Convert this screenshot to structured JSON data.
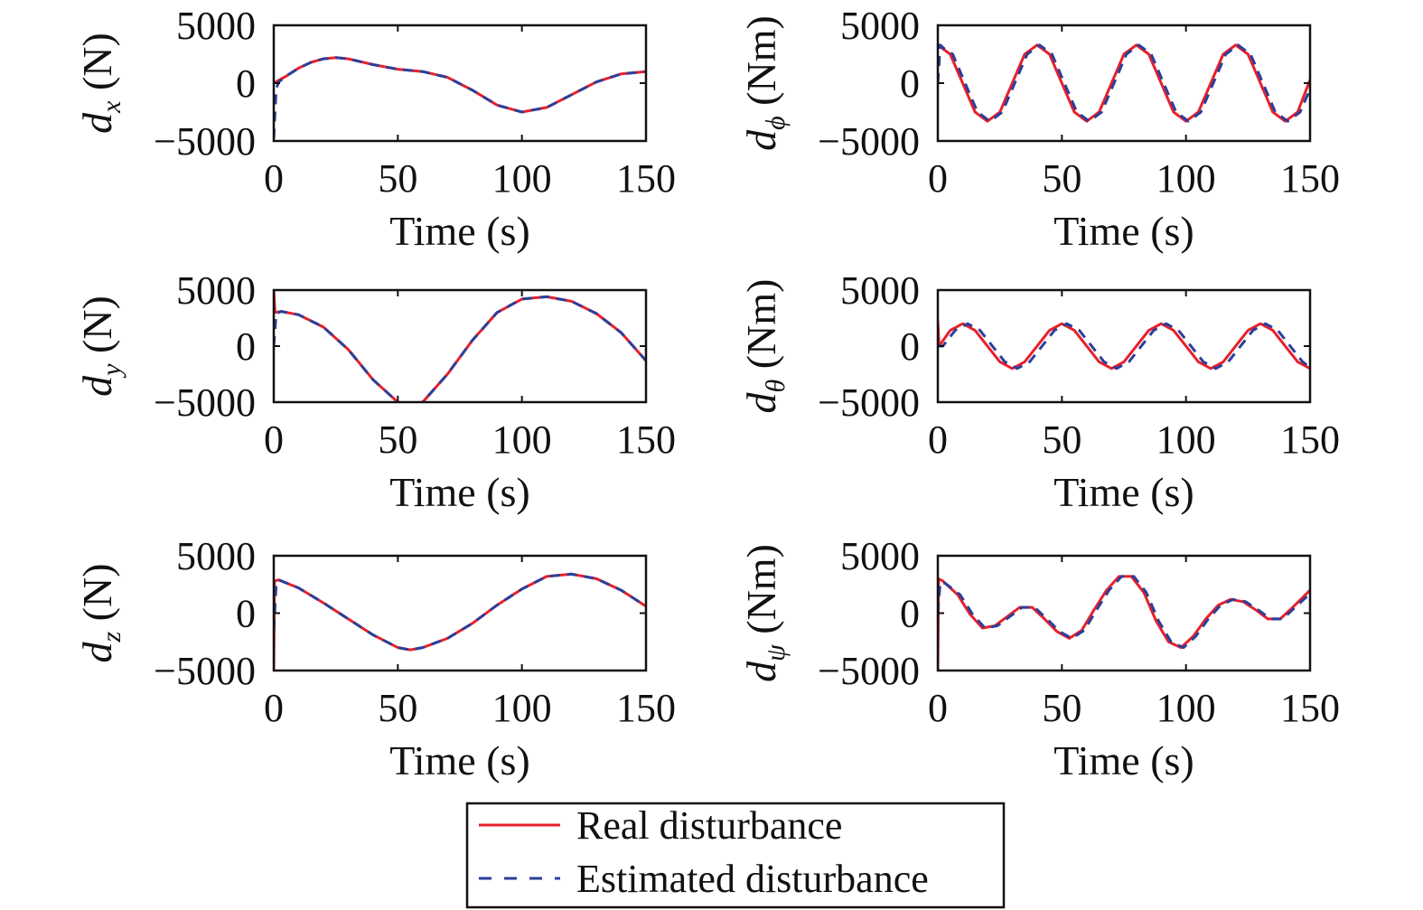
{
  "legend": {
    "real_label": "Real disturbance",
    "estimated_label": "Estimated disturbance",
    "real_color": "#e8202a",
    "estimated_color": "#2b3f9a",
    "placement": "bottom-center"
  },
  "chart_data": [
    {
      "type": "line",
      "xlabel": "Time (s)",
      "ylabel_symbol": "d",
      "ylabel_sub": "x",
      "ylabel_unit": " (N)",
      "xlim": [
        0,
        150
      ],
      "ylim": [
        -5000,
        5000
      ],
      "xticks": [
        0,
        50,
        100,
        150
      ],
      "yticks": [
        -5000,
        0,
        5000
      ],
      "xtick_labels": [
        "0",
        "50",
        "100",
        "150"
      ],
      "ytick_labels": [
        "−5000",
        "0",
        "5000"
      ],
      "series": [
        {
          "role": "real",
          "x": [
            0,
            5,
            10,
            15,
            20,
            25,
            30,
            40,
            50,
            60,
            70,
            80,
            90,
            100,
            110,
            120,
            130,
            140,
            150
          ],
          "y": [
            0,
            600,
            1300,
            1800,
            2100,
            2200,
            2100,
            1600,
            1200,
            1000,
            500,
            -600,
            -1900,
            -2500,
            -2100,
            -1000,
            100,
            800,
            1000
          ]
        },
        {
          "role": "estimated",
          "x": [
            0,
            0.5,
            1,
            2,
            5,
            10,
            15,
            20,
            25,
            30,
            40,
            50,
            60,
            70,
            80,
            90,
            100,
            110,
            120,
            130,
            140,
            150
          ],
          "y": [
            -4800,
            -2500,
            -500,
            100,
            600,
            1300,
            1800,
            2100,
            2200,
            2100,
            1600,
            1200,
            1000,
            500,
            -600,
            -1900,
            -2500,
            -2100,
            -1000,
            100,
            800,
            1000
          ]
        }
      ]
    },
    {
      "type": "line",
      "xlabel": "Time (s)",
      "ylabel_symbol": "d",
      "ylabel_sub": "ϕ",
      "ylabel_unit": " (Nm)",
      "xlim": [
        0,
        150
      ],
      "ylim": [
        -5000,
        5000
      ],
      "xticks": [
        0,
        50,
        100,
        150
      ],
      "yticks": [
        -5000,
        0,
        5000
      ],
      "xtick_labels": [
        "0",
        "50",
        "100",
        "150"
      ],
      "ytick_labels": [
        "−5000",
        "0",
        "5000"
      ],
      "series": [
        {
          "role": "real",
          "x": [
            0,
            5,
            10,
            15,
            20,
            25,
            30,
            35,
            40,
            45,
            50,
            55,
            60,
            65,
            70,
            75,
            80,
            85,
            90,
            95,
            100,
            105,
            110,
            115,
            120,
            125,
            130,
            135,
            140,
            145,
            150
          ],
          "y": [
            3300,
            2500,
            0,
            -2500,
            -3300,
            -2500,
            0,
            2500,
            3300,
            2500,
            0,
            -2500,
            -3300,
            -2500,
            0,
            2500,
            3300,
            2500,
            0,
            -2500,
            -3300,
            -2500,
            0,
            2500,
            3300,
            2500,
            0,
            -2500,
            -3300,
            -2500,
            300
          ]
        },
        {
          "role": "estimated",
          "x": [
            0,
            1,
            3,
            6,
            11,
            16,
            21,
            26,
            31,
            36,
            41,
            46,
            51,
            56,
            61,
            66,
            71,
            76,
            81,
            86,
            91,
            96,
            101,
            106,
            111,
            116,
            121,
            126,
            131,
            136,
            141,
            146,
            150
          ],
          "y": [
            0,
            3300,
            2900,
            2500,
            0,
            -2500,
            -3300,
            -2500,
            0,
            2500,
            3300,
            2500,
            0,
            -2500,
            -3300,
            -2500,
            0,
            2500,
            3300,
            2500,
            0,
            -2500,
            -3300,
            -2500,
            0,
            2500,
            3300,
            2500,
            0,
            -2500,
            -3300,
            -2500,
            -500
          ]
        }
      ]
    },
    {
      "type": "line",
      "xlabel": "Time (s)",
      "ylabel_symbol": "d",
      "ylabel_sub": "y",
      "ylabel_unit": " (N)",
      "xlim": [
        0,
        150
      ],
      "ylim": [
        -5000,
        5000
      ],
      "xticks": [
        0,
        50,
        100,
        150
      ],
      "yticks": [
        -5000,
        0,
        5000
      ],
      "xtick_labels": [
        "0",
        "50",
        "100",
        "150"
      ],
      "ytick_labels": [
        "−5000",
        "0",
        "5000"
      ],
      "series": [
        {
          "role": "real",
          "x": [
            0,
            0.5,
            3,
            10,
            20,
            30,
            40,
            50,
            55,
            60,
            70,
            80,
            90,
            100,
            110,
            120,
            130,
            140,
            150
          ],
          "y": [
            5000,
            3000,
            3100,
            2800,
            1700,
            -300,
            -3000,
            -5000,
            -5300,
            -5000,
            -2500,
            500,
            3000,
            4200,
            4400,
            4000,
            2900,
            1200,
            -1300
          ]
        },
        {
          "role": "estimated",
          "x": [
            0,
            1,
            3,
            10,
            20,
            30,
            40,
            50,
            55,
            60,
            70,
            80,
            90,
            100,
            110,
            120,
            130,
            140,
            150
          ],
          "y": [
            0,
            2900,
            3100,
            2800,
            1700,
            -300,
            -3000,
            -5000,
            -5300,
            -5000,
            -2500,
            500,
            3000,
            4200,
            4400,
            4000,
            2900,
            1200,
            -1300
          ]
        }
      ]
    },
    {
      "type": "line",
      "xlabel": "Time (s)",
      "ylabel_symbol": "d",
      "ylabel_sub": "θ",
      "ylabel_unit": " (Nm)",
      "xlim": [
        0,
        150
      ],
      "ylim": [
        -5000,
        5000
      ],
      "xticks": [
        0,
        50,
        100,
        150
      ],
      "yticks": [
        -5000,
        0,
        5000
      ],
      "xtick_labels": [
        "0",
        "50",
        "100",
        "150"
      ],
      "ytick_labels": [
        "−5000",
        "0",
        "5000"
      ],
      "series": [
        {
          "role": "real",
          "x": [
            0,
            0.5,
            5,
            10,
            15,
            20,
            25,
            30,
            35,
            40,
            45,
            50,
            55,
            60,
            65,
            70,
            75,
            80,
            85,
            90,
            95,
            100,
            105,
            110,
            115,
            120,
            125,
            130,
            135,
            140,
            145,
            150
          ],
          "y": [
            2200,
            0,
            1400,
            2000,
            1400,
            0,
            -1400,
            -2000,
            -1400,
            0,
            1400,
            2000,
            1400,
            0,
            -1400,
            -2000,
            -1400,
            0,
            1400,
            2000,
            1400,
            0,
            -1400,
            -2000,
            -1400,
            0,
            1400,
            2000,
            1400,
            0,
            -1400,
            -2000
          ]
        },
        {
          "role": "estimated",
          "x": [
            0,
            2,
            7,
            12,
            17,
            22,
            27,
            32,
            37,
            42,
            47,
            52,
            57,
            62,
            67,
            72,
            77,
            82,
            87,
            92,
            97,
            102,
            107,
            112,
            117,
            122,
            127,
            132,
            137,
            142,
            147,
            150
          ],
          "y": [
            0,
            0,
            1400,
            2000,
            1400,
            0,
            -1400,
            -2000,
            -1400,
            0,
            1400,
            2000,
            1400,
            0,
            -1400,
            -2000,
            -1400,
            0,
            1400,
            2000,
            1400,
            0,
            -1400,
            -2000,
            -1400,
            0,
            1400,
            2000,
            1400,
            0,
            -1400,
            -1900
          ]
        }
      ]
    },
    {
      "type": "line",
      "xlabel": "Time (s)",
      "ylabel_symbol": "d",
      "ylabel_sub": "z",
      "ylabel_unit": " (N)",
      "xlim": [
        0,
        150
      ],
      "ylim": [
        -5000,
        5000
      ],
      "xticks": [
        0,
        50,
        100,
        150
      ],
      "yticks": [
        -5000,
        0,
        5000
      ],
      "xtick_labels": [
        "0",
        "50",
        "100",
        "150"
      ],
      "ytick_labels": [
        "−5000",
        "0",
        "5000"
      ],
      "series": [
        {
          "role": "real",
          "x": [
            0,
            0.3,
            2,
            10,
            20,
            30,
            40,
            50,
            55,
            60,
            70,
            80,
            90,
            100,
            110,
            120,
            130,
            140,
            150
          ],
          "y": [
            -5000,
            2800,
            2900,
            2200,
            900,
            -500,
            -1900,
            -3000,
            -3200,
            -3000,
            -2200,
            -900,
            700,
            2100,
            3200,
            3400,
            3000,
            2000,
            600
          ]
        },
        {
          "role": "estimated",
          "x": [
            0,
            1,
            2,
            10,
            20,
            30,
            40,
            50,
            55,
            60,
            70,
            80,
            90,
            100,
            110,
            120,
            130,
            140,
            150
          ],
          "y": [
            -1500,
            2500,
            2900,
            2200,
            900,
            -500,
            -1900,
            -3000,
            -3200,
            -3000,
            -2200,
            -900,
            700,
            2100,
            3200,
            3400,
            3000,
            2000,
            600
          ]
        }
      ]
    },
    {
      "type": "line",
      "xlabel": "Time (s)",
      "ylabel_symbol": "d",
      "ylabel_sub": "ψ",
      "ylabel_unit": " (Nm)",
      "xlim": [
        0,
        150
      ],
      "ylim": [
        -5000,
        5000
      ],
      "xticks": [
        0,
        50,
        100,
        150
      ],
      "yticks": [
        -5000,
        0,
        5000
      ],
      "xtick_labels": [
        "0",
        "50",
        "100",
        "150"
      ],
      "ytick_labels": [
        "−5000",
        "0",
        "5000"
      ],
      "series": [
        {
          "role": "real",
          "x": [
            0,
            0.3,
            2,
            8,
            13,
            18,
            23,
            28,
            33,
            38,
            43,
            48,
            53,
            58,
            63,
            68,
            73,
            78,
            83,
            88,
            93,
            98,
            103,
            108,
            113,
            118,
            123,
            128,
            133,
            138,
            143,
            150
          ],
          "y": [
            -5000,
            3000,
            2800,
            1600,
            -100,
            -1300,
            -1100,
            -300,
            500,
            500,
            -500,
            -1600,
            -2200,
            -1500,
            300,
            2000,
            3200,
            3200,
            1800,
            -700,
            -2500,
            -3000,
            -2000,
            -500,
            700,
            1200,
            1000,
            300,
            -500,
            -500,
            500,
            2000
          ]
        },
        {
          "role": "estimated",
          "x": [
            0,
            1,
            3,
            9,
            14,
            19,
            24,
            29,
            34,
            39,
            44,
            49,
            54,
            59,
            64,
            69,
            74,
            79,
            84,
            89,
            94,
            99,
            104,
            109,
            114,
            119,
            124,
            129,
            134,
            139,
            144,
            150
          ],
          "y": [
            0,
            2700,
            2600,
            1600,
            -100,
            -1300,
            -1100,
            -300,
            500,
            500,
            -500,
            -1600,
            -2200,
            -1500,
            300,
            2000,
            3200,
            3200,
            1800,
            -700,
            -2500,
            -3000,
            -2000,
            -500,
            700,
            1200,
            1000,
            300,
            -500,
            -500,
            500,
            1700
          ]
        }
      ]
    }
  ]
}
